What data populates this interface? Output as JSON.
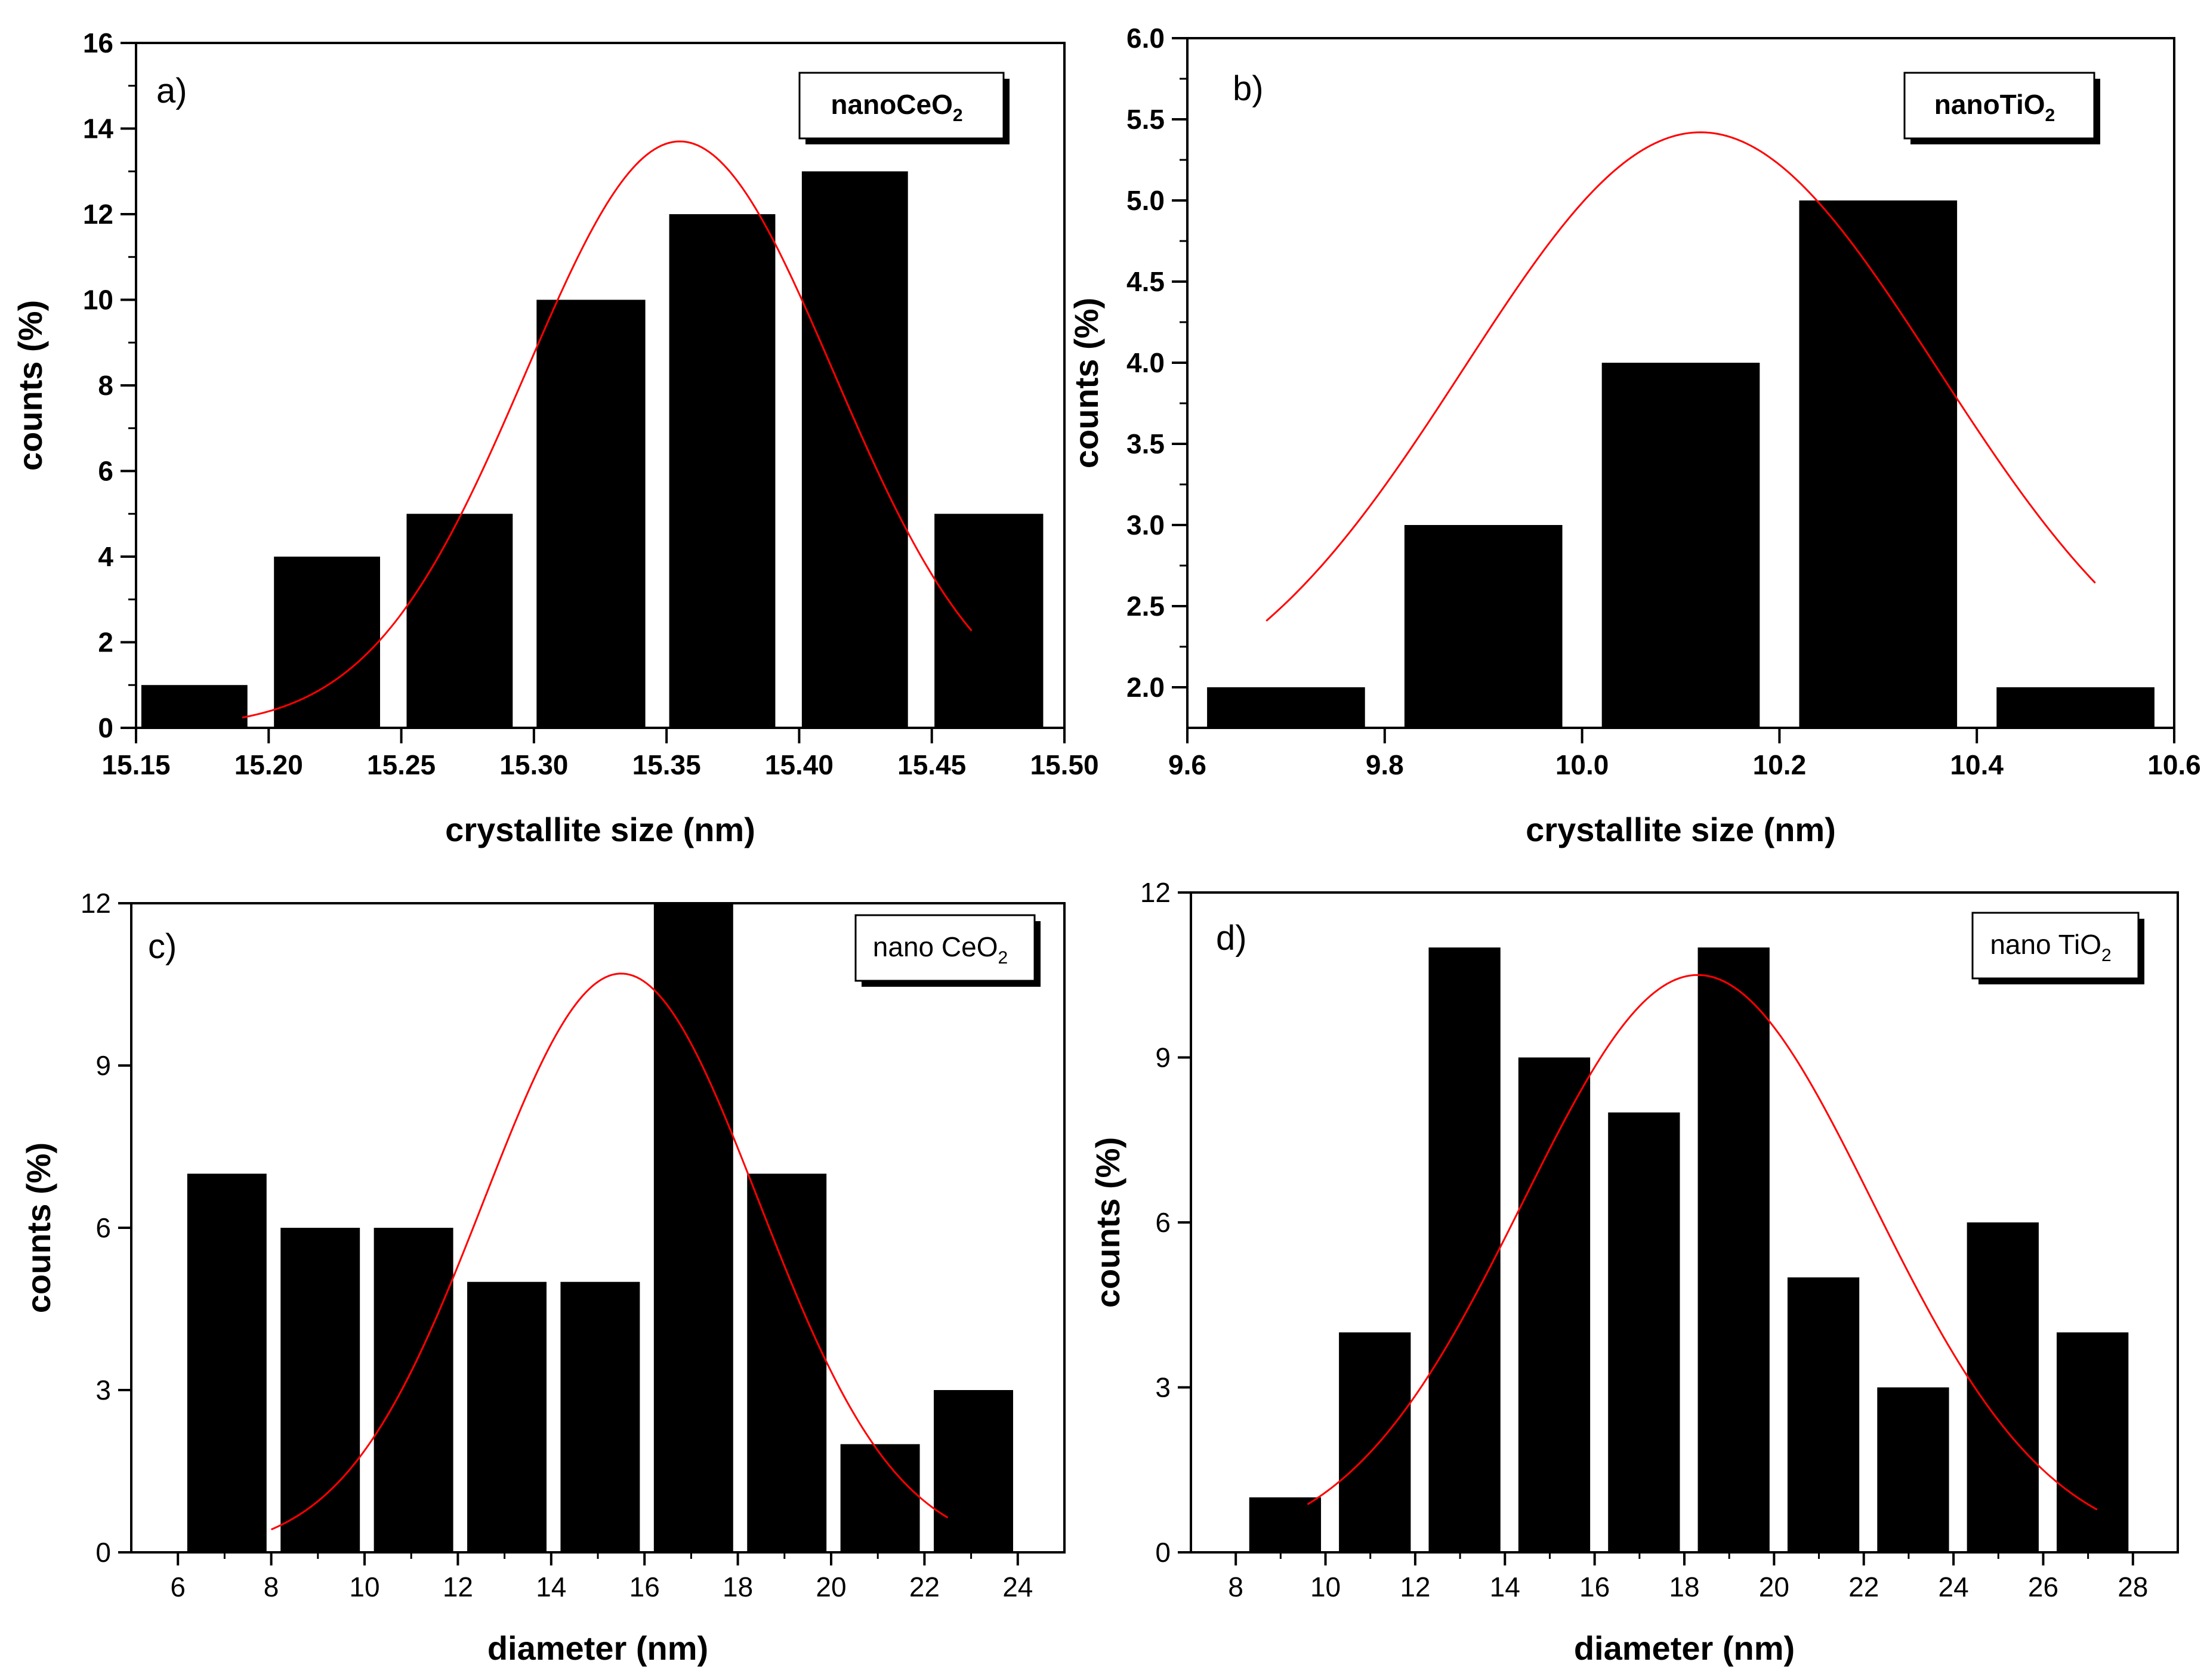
{
  "chart_data": [
    {
      "panel_label": "a)",
      "type": "bar",
      "legend": "nanoCeO",
      "legend_sub": "2",
      "legend_style": "bold",
      "xlabel": "crystallite size (nm)",
      "ylabel": "counts (%)",
      "xlim": [
        15.15,
        15.5
      ],
      "ylim": [
        0,
        16
      ],
      "x_ticks": [
        "15.15",
        "15.20",
        "15.25",
        "15.30",
        "15.35",
        "15.40",
        "15.45",
        "15.50"
      ],
      "y_ticks": [
        "0",
        "2",
        "4",
        "6",
        "8",
        "10",
        "12",
        "14",
        "16"
      ],
      "tick_style": "bold",
      "bins": [
        {
          "start": 15.152,
          "end": 15.192,
          "value": 1
        },
        {
          "start": 15.202,
          "end": 15.242,
          "value": 4
        },
        {
          "start": 15.252,
          "end": 15.292,
          "value": 5
        },
        {
          "start": 15.301,
          "end": 15.342,
          "value": 10
        },
        {
          "start": 15.351,
          "end": 15.391,
          "value": 12
        },
        {
          "start": 15.401,
          "end": 15.441,
          "value": 13
        },
        {
          "start": 15.451,
          "end": 15.492,
          "value": 5
        }
      ],
      "fit": {
        "type": "gaussian",
        "mu": 15.355,
        "sigma": 0.058,
        "amplitude": 13.7,
        "x_range": [
          15.19,
          15.465
        ]
      }
    },
    {
      "panel_label": "b)",
      "type": "bar",
      "legend": "nanoTiO",
      "legend_sub": "2",
      "legend_style": "bold",
      "xlabel": "crystallite size (nm)",
      "ylabel": "counts (%)",
      "xlim": [
        9.6,
        10.6
      ],
      "ylim": [
        1.75,
        6.0
      ],
      "x_ticks": [
        "9.6",
        "9.8",
        "10.0",
        "10.2",
        "10.4",
        "10.6"
      ],
      "y_ticks": [
        "2.0",
        "2.5",
        "3.0",
        "3.5",
        "4.0",
        "4.5",
        "5.0",
        "5.5",
        "6.0"
      ],
      "tick_style": "bold",
      "bins": [
        {
          "start": 9.62,
          "end": 9.78,
          "value": 2
        },
        {
          "start": 9.82,
          "end": 9.98,
          "value": 3
        },
        {
          "start": 10.02,
          "end": 10.18,
          "value": 4
        },
        {
          "start": 10.22,
          "end": 10.38,
          "value": 5
        },
        {
          "start": 10.42,
          "end": 10.58,
          "value": 2
        }
      ],
      "fit": {
        "type": "gaussian",
        "mu": 10.12,
        "sigma": 0.24,
        "amplitude": 3.7,
        "baseline": 1.72,
        "x_range": [
          9.68,
          10.52
        ]
      }
    },
    {
      "panel_label": "c)",
      "type": "bar",
      "legend": "nano CeO",
      "legend_sub": "2",
      "legend_style": "normal",
      "xlabel": "diameter (nm)",
      "ylabel": "counts (%)",
      "xlim": [
        5,
        25
      ],
      "ylim": [
        0,
        12
      ],
      "x_ticks": [
        "6",
        "8",
        "10",
        "12",
        "14",
        "16",
        "18",
        "20",
        "22",
        "24"
      ],
      "y_ticks": [
        "0",
        "3",
        "6",
        "9",
        "12"
      ],
      "tick_style": "normal",
      "bins": [
        {
          "start": 6.2,
          "end": 7.9,
          "value": 7
        },
        {
          "start": 8.2,
          "end": 9.9,
          "value": 6
        },
        {
          "start": 10.2,
          "end": 11.9,
          "value": 6
        },
        {
          "start": 12.2,
          "end": 13.9,
          "value": 5
        },
        {
          "start": 14.2,
          "end": 15.9,
          "value": 5
        },
        {
          "start": 16.2,
          "end": 17.9,
          "value": 12
        },
        {
          "start": 18.2,
          "end": 19.9,
          "value": 7
        },
        {
          "start": 20.2,
          "end": 21.9,
          "value": 2
        },
        {
          "start": 22.2,
          "end": 23.9,
          "value": 3
        }
      ],
      "fit": {
        "type": "gaussian",
        "mu": 15.5,
        "sigma": 2.95,
        "amplitude": 10.7,
        "x_range": [
          8.0,
          22.5
        ]
      }
    },
    {
      "panel_label": "d)",
      "type": "bar",
      "legend": "nano TiO",
      "legend_sub": "2",
      "legend_style": "normal",
      "xlabel": "diameter (nm)",
      "ylabel": "counts (%)",
      "xlim": [
        7,
        29
      ],
      "ylim": [
        0,
        12
      ],
      "x_ticks": [
        "8",
        "10",
        "12",
        "14",
        "16",
        "18",
        "20",
        "22",
        "24",
        "26",
        "28"
      ],
      "y_ticks": [
        "0",
        "3",
        "6",
        "9",
        "12"
      ],
      "tick_style": "normal",
      "bins": [
        {
          "start": 8.3,
          "end": 9.9,
          "value": 1
        },
        {
          "start": 10.3,
          "end": 11.9,
          "value": 4
        },
        {
          "start": 12.3,
          "end": 13.9,
          "value": 11
        },
        {
          "start": 14.3,
          "end": 15.9,
          "value": 9
        },
        {
          "start": 16.3,
          "end": 17.9,
          "value": 8
        },
        {
          "start": 18.3,
          "end": 19.9,
          "value": 11
        },
        {
          "start": 20.3,
          "end": 21.9,
          "value": 5
        },
        {
          "start": 22.3,
          "end": 23.9,
          "value": 3
        },
        {
          "start": 24.3,
          "end": 25.9,
          "value": 6
        },
        {
          "start": 26.3,
          "end": 27.9,
          "value": 4
        }
      ],
      "fit": {
        "type": "gaussian",
        "mu": 18.3,
        "sigma": 3.9,
        "amplitude": 10.5,
        "x_range": [
          9.6,
          27.2
        ]
      }
    }
  ]
}
